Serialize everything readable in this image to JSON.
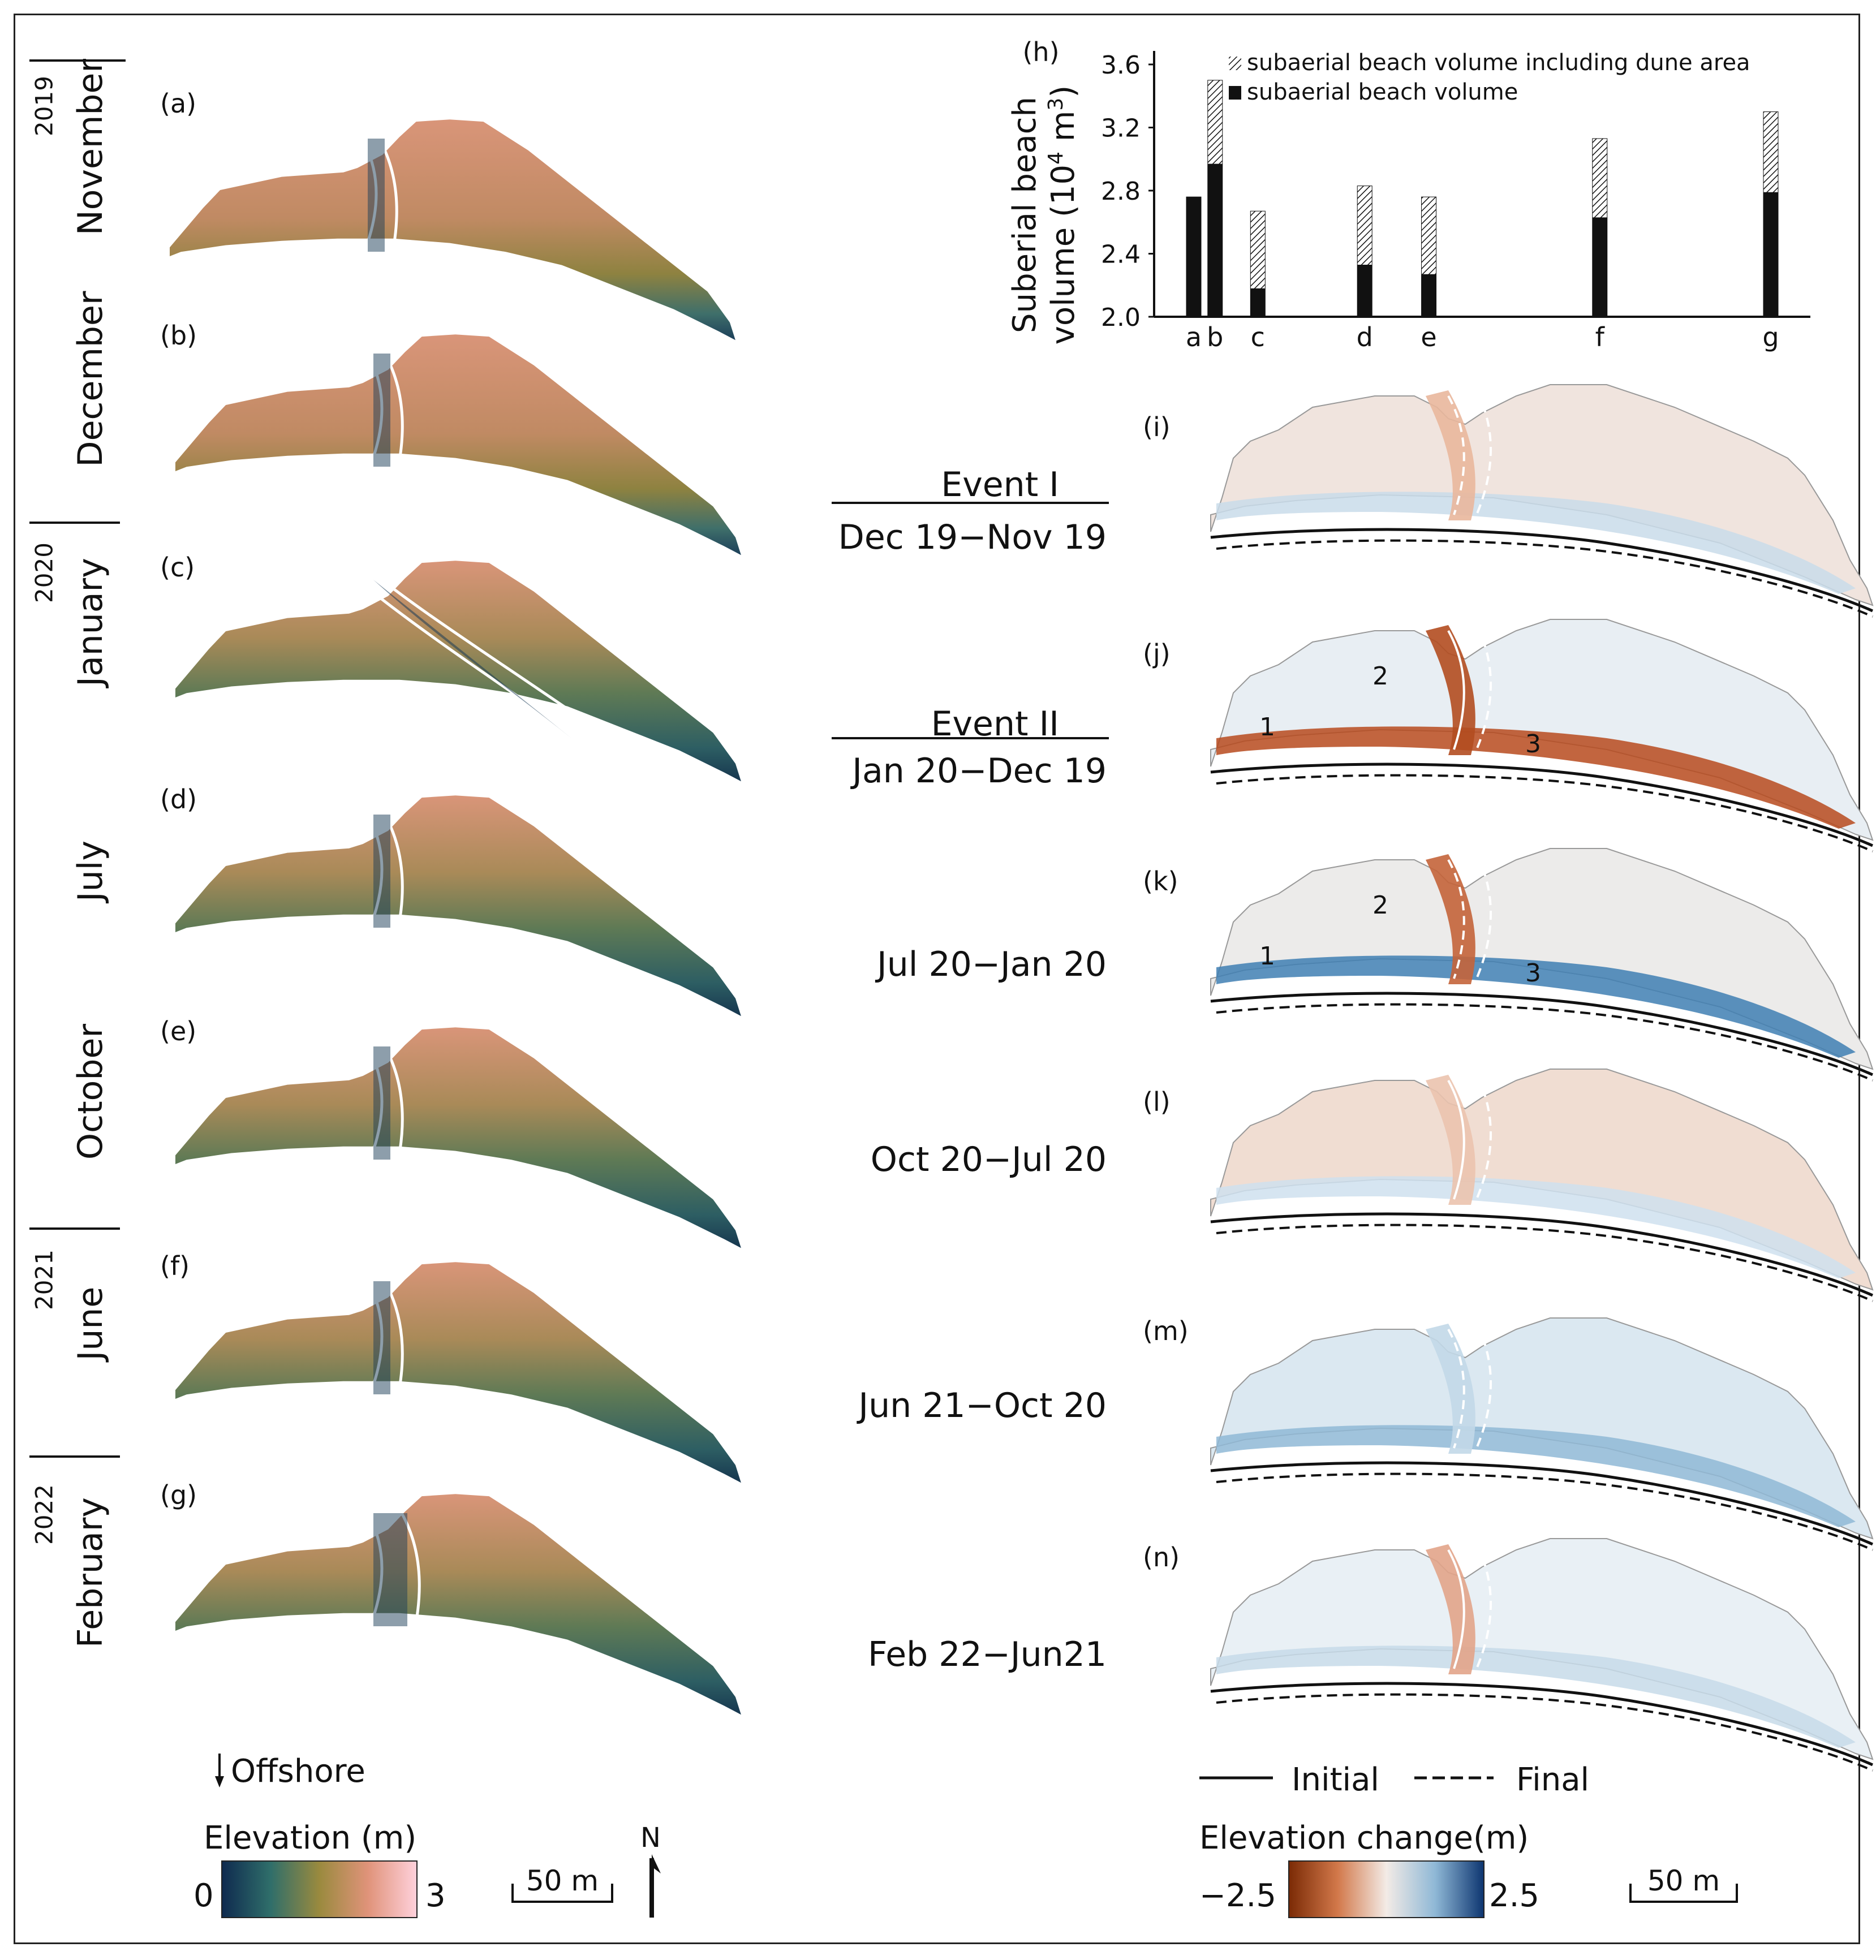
{
  "left_column": {
    "years": [
      {
        "label": "2019"
      },
      {
        "label": "2020"
      },
      {
        "label": "2021"
      },
      {
        "label": "2022"
      }
    ],
    "panels": [
      {
        "id": "(a)",
        "month": "November"
      },
      {
        "id": "(b)",
        "month": "December"
      },
      {
        "id": "(c)",
        "month": "January"
      },
      {
        "id": "(d)",
        "month": "July"
      },
      {
        "id": "(e)",
        "month": "October"
      },
      {
        "id": "(f)",
        "month": "June"
      },
      {
        "id": "(g)",
        "month": "February"
      }
    ],
    "offshore_label": "Offshore",
    "colorbar": {
      "title": "Elevation (m)",
      "min_label": "0",
      "max_label": "3",
      "colors": [
        "#0f2a4f",
        "#2f6e6a",
        "#9a8a3e",
        "#e0937a",
        "#ffd1dc"
      ]
    },
    "scale_label": "50 m",
    "north_label": "N"
  },
  "events": [
    {
      "title": "Event I",
      "range": "Dec 19−Nov 19"
    },
    {
      "title": "Event II",
      "range": "Jan 20−Dec 19"
    },
    {
      "title": "",
      "range": "Jul 20−Jan 20"
    },
    {
      "title": "",
      "range": "Oct 20−Jul 20"
    },
    {
      "title": "",
      "range": "Jun 21−Oct 20"
    },
    {
      "title": "",
      "range": "Feb 22−Jun21"
    }
  ],
  "right_column": {
    "panels": [
      {
        "id": "(i)",
        "zones": []
      },
      {
        "id": "(j)",
        "zones": [
          "1",
          "2",
          "3"
        ]
      },
      {
        "id": "(k)",
        "zones": [
          "1",
          "2",
          "3"
        ]
      },
      {
        "id": "(l)",
        "zones": []
      },
      {
        "id": "(m)",
        "zones": []
      },
      {
        "id": "(n)",
        "zones": []
      }
    ],
    "legend": {
      "solid": "Initial",
      "dashed": "Final"
    },
    "colorbar": {
      "title": "Elevation change(m)",
      "min_label": "−2.5",
      "max_label": "2.5",
      "colors": [
        "#7a2a05",
        "#d2784a",
        "#f3ebe6",
        "#8fb8d6",
        "#0d3570"
      ]
    },
    "scale_label": "50 m"
  },
  "chart_data": {
    "type": "bar",
    "panel_label": "(h)",
    "ylabel_line1": "Suberial beach",
    "ylabel_line2": "volume (10",
    "ylabel_sup": "4",
    "ylabel_line2_end": " m",
    "ylabel_sup2": "3",
    "ylabel_close": ")",
    "categories": [
      "a",
      "b",
      "c",
      "d",
      "e",
      "f",
      "g"
    ],
    "x_positions": [
      0,
      1,
      3,
      8,
      11,
      19,
      27
    ],
    "series": [
      {
        "name": "subaerial beach volume including dune area",
        "values": [
          2.76,
          3.5,
          2.67,
          2.83,
          2.76,
          3.13,
          3.3
        ],
        "pattern": "hatched"
      },
      {
        "name": "subaerial beach volume",
        "values": [
          2.76,
          2.97,
          2.18,
          2.33,
          2.27,
          2.63,
          2.79
        ],
        "color": "#111111"
      }
    ],
    "ylim": [
      2.0,
      3.65
    ],
    "yticks": [
      "2.0",
      "2.4",
      "2.8",
      "3.2",
      "3.6"
    ],
    "ytick_values": [
      2.0,
      2.4,
      2.8,
      3.2,
      3.6
    ]
  }
}
